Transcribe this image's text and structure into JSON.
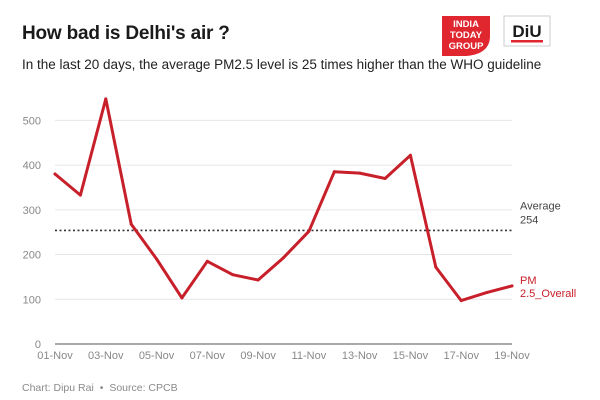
{
  "header": {
    "title": "How bad is Delhi's air ?",
    "subtitle": "In the last 20 days, the average PM2.5 level is 25 times higher than the WHO guideline"
  },
  "logos": {
    "india_today": {
      "line1": "INDIA",
      "line2": "TODAY",
      "line3": "GROUP",
      "color": "#e0262f"
    },
    "diu": {
      "text": "DiU",
      "color": "#e0262f"
    }
  },
  "footer": {
    "credit": "Chart: Dipu Rai",
    "separator": "•",
    "source": "Source: CPCB"
  },
  "chart_data": {
    "type": "line",
    "x": [
      "01-Nov",
      "02-Nov",
      "03-Nov",
      "04-Nov",
      "05-Nov",
      "06-Nov",
      "07-Nov",
      "08-Nov",
      "09-Nov",
      "10-Nov",
      "11-Nov",
      "12-Nov",
      "13-Nov",
      "14-Nov",
      "15-Nov",
      "16-Nov",
      "17-Nov",
      "18-Nov",
      "19-Nov"
    ],
    "x_tick_labels": [
      "01-Nov",
      "03-Nov",
      "05-Nov",
      "07-Nov",
      "09-Nov",
      "11-Nov",
      "13-Nov",
      "15-Nov",
      "17-Nov",
      "19-Nov"
    ],
    "series": [
      {
        "name": "PM 2.5_Overall",
        "label_lines": [
          "PM",
          "2.5_Overall"
        ],
        "color": "#c8202a",
        "values": [
          380,
          333,
          548,
          268,
          190,
          103,
          185,
          155,
          143,
          193,
          252,
          385,
          382,
          370,
          422,
          172,
          97,
          115,
          130
        ]
      }
    ],
    "reference_line": {
      "label": "Average",
      "value": 254,
      "value_text": "254",
      "style": "dotted",
      "color": "#333333"
    },
    "ylim": [
      0,
      550
    ],
    "yticks": [
      0,
      100,
      200,
      300,
      400,
      500
    ],
    "grid": true,
    "title": "",
    "xlabel": "",
    "ylabel": ""
  }
}
